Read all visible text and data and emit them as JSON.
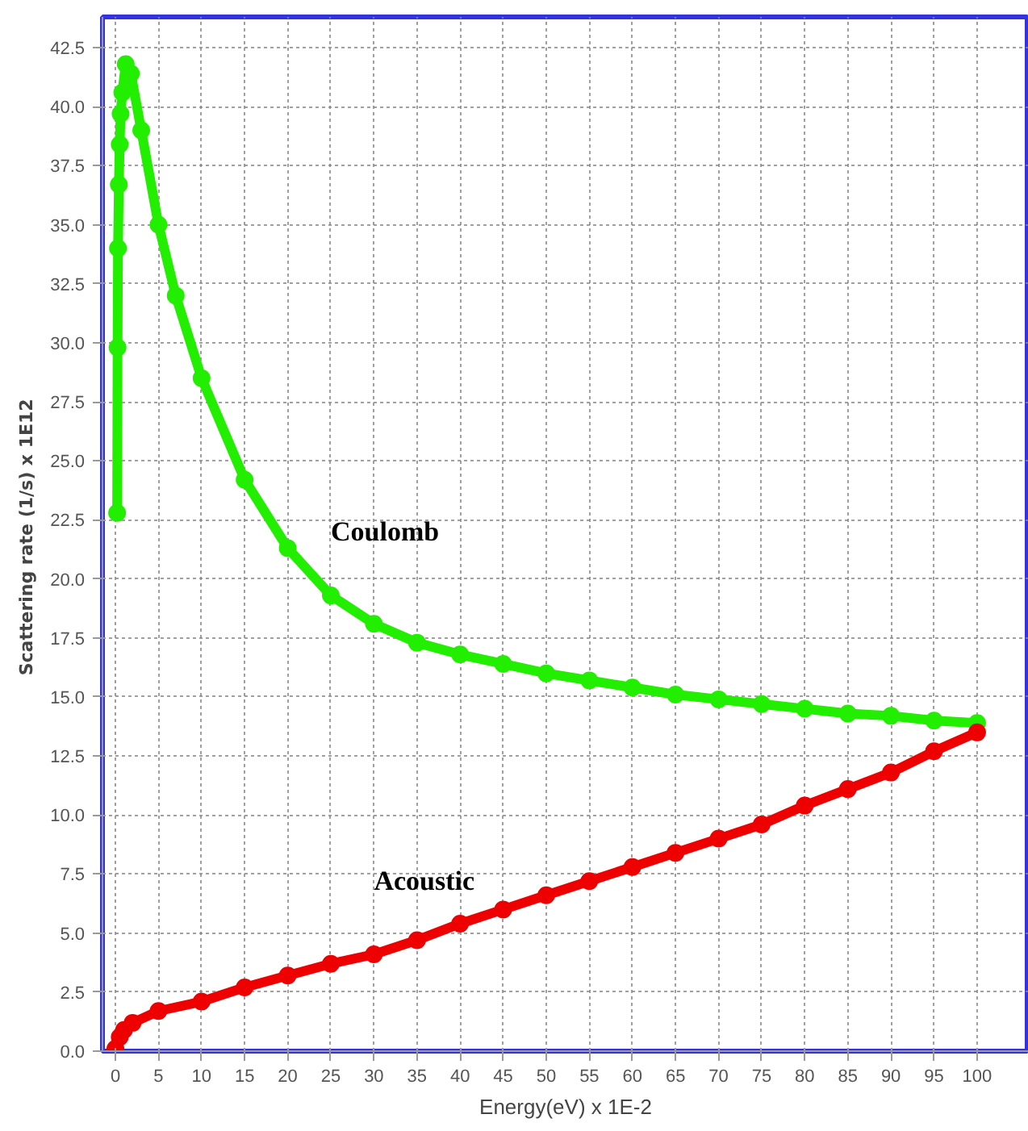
{
  "chart_data": {
    "type": "line",
    "xlabel": "Energy(eV) x 1E-2",
    "ylabel": "Scattering rate  (1/s) x 1E12",
    "xlim": [
      -1.5,
      106
    ],
    "ylim": [
      0,
      43.8
    ],
    "xticks": [
      0,
      5,
      10,
      15,
      20,
      25,
      30,
      35,
      40,
      45,
      50,
      55,
      60,
      65,
      70,
      75,
      80,
      85,
      90,
      95,
      100
    ],
    "yticks": [
      {
        "value": 0,
        "label": "0.0"
      },
      {
        "value": 2.5,
        "label": "2.5"
      },
      {
        "value": 5,
        "label": "5.0"
      },
      {
        "value": 7.5,
        "label": "7.5"
      },
      {
        "value": 10,
        "label": "10.0"
      },
      {
        "value": 12.5,
        "label": "12.5"
      },
      {
        "value": 15,
        "label": "15.0"
      },
      {
        "value": 17.5,
        "label": "17.5"
      },
      {
        "value": 20,
        "label": "20.0"
      },
      {
        "value": 22.5,
        "label": "22.5"
      },
      {
        "value": 25,
        "label": "25.0"
      },
      {
        "value": 27.5,
        "label": "27.5"
      },
      {
        "value": 30,
        "label": "30.0"
      },
      {
        "value": 32.5,
        "label": "32.5"
      },
      {
        "value": 35,
        "label": "35.0"
      },
      {
        "value": 37.5,
        "label": "37.5"
      },
      {
        "value": 40,
        "label": "40.0"
      },
      {
        "value": 42.5,
        "label": "42.5"
      }
    ],
    "grid": true,
    "marker": "circle",
    "line_style": "solid",
    "series": [
      {
        "name": "Coulomb",
        "color": "#22ee00",
        "x": [
          0.2,
          0.25,
          0.3,
          0.4,
          0.5,
          0.6,
          0.8,
          1.2,
          1.8,
          3,
          5,
          7,
          10,
          15,
          20,
          25,
          30,
          35,
          40,
          45,
          50,
          55,
          60,
          65,
          70,
          75,
          80,
          85,
          90,
          95,
          100
        ],
        "values": [
          22.8,
          29.8,
          34.0,
          36.7,
          38.4,
          39.7,
          40.6,
          41.8,
          41.4,
          39,
          35,
          32,
          28.5,
          24.2,
          21.3,
          19.3,
          18.1,
          17.3,
          16.8,
          16.4,
          16.0,
          15.7,
          15.4,
          15.1,
          14.9,
          14.7,
          14.5,
          14.3,
          14.2,
          14.0,
          13.9
        ]
      },
      {
        "name": "Acoustic",
        "color": "#ee0000",
        "x": [
          0,
          0.5,
          1,
          2,
          5,
          10,
          15,
          20,
          25,
          30,
          35,
          40,
          45,
          50,
          55,
          60,
          65,
          70,
          75,
          80,
          85,
          90,
          95,
          100
        ],
        "values": [
          0.1,
          0.6,
          0.9,
          1.2,
          1.7,
          2.1,
          2.7,
          3.2,
          3.7,
          4.1,
          4.7,
          5.4,
          6.0,
          6.6,
          7.2,
          7.8,
          8.4,
          9.0,
          9.6,
          10.4,
          11.1,
          11.8,
          12.7,
          13.5
        ]
      }
    ]
  }
}
